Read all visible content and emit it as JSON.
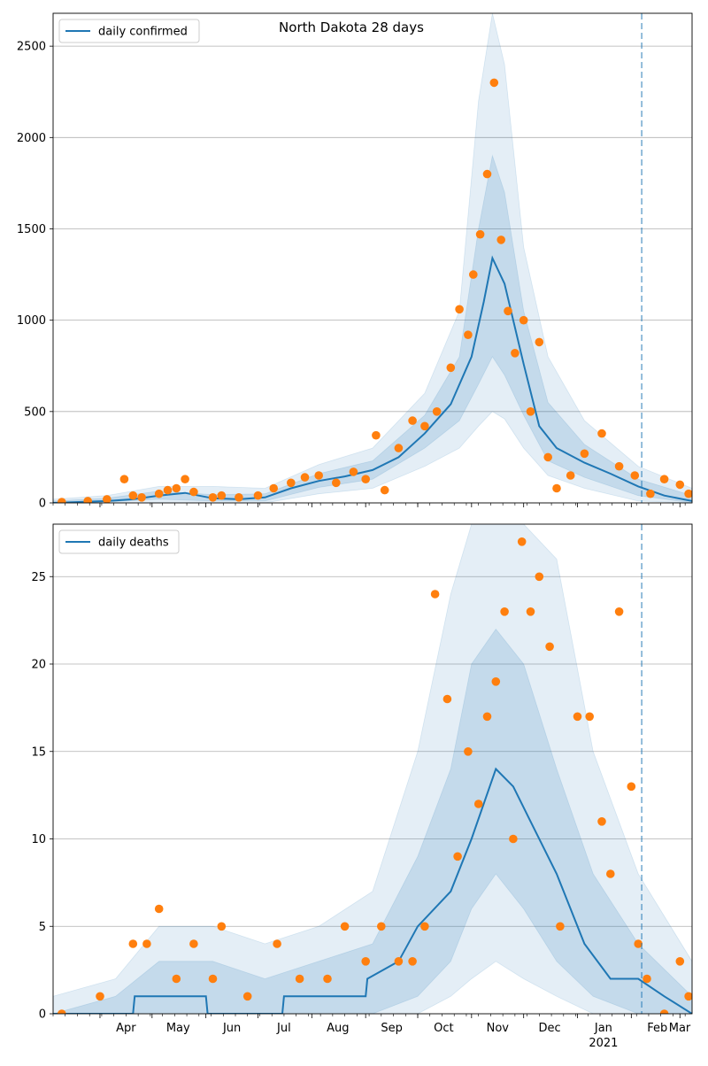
{
  "figure": {
    "title": "North Dakota 28 days"
  },
  "colors": {
    "model_line": "#1f77b4",
    "observed": "#ff7f0e",
    "band": "#1f77b4",
    "grid": "#b0b0b0",
    "cutoff": "#1f77b4"
  },
  "chart_data": [
    {
      "type": "line",
      "title": "North Dakota 28 days",
      "xlabel": "",
      "ylabel": "",
      "x_ticks": [
        "Apr",
        "May",
        "Jun",
        "Jul",
        "Aug",
        "Sep",
        "Oct",
        "Nov",
        "Dec",
        "Jan\n2021",
        "Feb",
        "Mar"
      ],
      "x_range": [
        "2020-03-05",
        "2021-03-08"
      ],
      "y_ticks": [
        0,
        500,
        1000,
        1500,
        2000,
        2500
      ],
      "ylim": [
        0,
        2680
      ],
      "grid": "horizontal",
      "legend": {
        "position": "top-left",
        "entries": [
          "daily confirmed"
        ]
      },
      "vertical_line": "2021-02-07",
      "series": [
        {
          "name": "daily confirmed",
          "kind": "model",
          "x": [
            "2020-03-05",
            "2020-03-20",
            "2020-04-05",
            "2020-04-20",
            "2020-05-05",
            "2020-05-20",
            "2020-06-05",
            "2020-06-20",
            "2020-07-05",
            "2020-07-20",
            "2020-08-05",
            "2020-08-20",
            "2020-09-05",
            "2020-09-20",
            "2020-10-05",
            "2020-10-20",
            "2020-11-01",
            "2020-11-08",
            "2020-11-13",
            "2020-11-20",
            "2020-12-01",
            "2020-12-10",
            "2020-12-20",
            "2021-01-05",
            "2021-01-20",
            "2021-02-05",
            "2021-02-20",
            "2021-03-08"
          ],
          "values": [
            0,
            5,
            10,
            20,
            40,
            55,
            25,
            20,
            30,
            80,
            120,
            145,
            180,
            250,
            380,
            540,
            800,
            1100,
            1340,
            1200,
            760,
            420,
            300,
            220,
            160,
            90,
            40,
            10
          ]
        },
        {
          "name": "",
          "kind": "observed",
          "x": [
            "2020-03-10",
            "2020-03-25",
            "2020-04-05",
            "2020-04-15",
            "2020-04-20",
            "2020-04-25",
            "2020-05-05",
            "2020-05-10",
            "2020-05-15",
            "2020-05-20",
            "2020-05-25",
            "2020-06-05",
            "2020-06-10",
            "2020-06-20",
            "2020-07-01",
            "2020-07-10",
            "2020-07-20",
            "2020-07-28",
            "2020-08-05",
            "2020-08-15",
            "2020-08-25",
            "2020-09-01",
            "2020-09-07",
            "2020-09-12",
            "2020-09-20",
            "2020-09-28",
            "2020-10-05",
            "2020-10-12",
            "2020-10-20",
            "2020-10-25",
            "2020-10-30",
            "2020-11-02",
            "2020-11-06",
            "2020-11-10",
            "2020-11-14",
            "2020-11-18",
            "2020-11-22",
            "2020-11-26",
            "2020-12-01",
            "2020-12-05",
            "2020-12-10",
            "2020-12-15",
            "2020-12-20",
            "2020-12-28",
            "2021-01-05",
            "2021-01-15",
            "2021-01-25",
            "2021-02-03",
            "2021-02-12",
            "2021-02-20",
            "2021-03-01",
            "2021-03-06"
          ],
          "values": [
            5,
            10,
            20,
            130,
            40,
            30,
            50,
            70,
            80,
            130,
            60,
            30,
            40,
            30,
            40,
            80,
            110,
            140,
            150,
            110,
            170,
            130,
            370,
            70,
            300,
            450,
            420,
            500,
            740,
            1060,
            920,
            1250,
            1470,
            1800,
            2300,
            1440,
            1050,
            820,
            1000,
            500,
            880,
            250,
            80,
            150,
            270,
            380,
            200,
            150,
            50,
            130,
            100,
            50
          ]
        }
      ],
      "bands": [
        {
          "level": "outer",
          "x": [
            "2020-03-05",
            "2020-04-05",
            "2020-05-05",
            "2020-06-05",
            "2020-07-05",
            "2020-08-05",
            "2020-09-05",
            "2020-10-05",
            "2020-10-25",
            "2020-11-05",
            "2020-11-13",
            "2020-11-20",
            "2020-12-01",
            "2020-12-15",
            "2021-01-05",
            "2021-02-05",
            "2021-03-08"
          ],
          "upper": [
            20,
            40,
            90,
            90,
            80,
            210,
            300,
            600,
            1050,
            2200,
            2680,
            2400,
            1400,
            800,
            450,
            200,
            80
          ],
          "lower": [
            0,
            0,
            0,
            0,
            0,
            50,
            80,
            200,
            300,
            420,
            500,
            460,
            300,
            150,
            80,
            10,
            0
          ]
        },
        {
          "level": "inner",
          "x": [
            "2020-03-05",
            "2020-04-05",
            "2020-05-05",
            "2020-06-05",
            "2020-07-05",
            "2020-08-05",
            "2020-09-05",
            "2020-10-05",
            "2020-10-25",
            "2020-11-05",
            "2020-11-13",
            "2020-11-20",
            "2020-12-01",
            "2020-12-15",
            "2021-01-05",
            "2021-02-05",
            "2021-03-08"
          ],
          "upper": [
            10,
            25,
            65,
            45,
            50,
            160,
            230,
            480,
            800,
            1500,
            1900,
            1700,
            1050,
            550,
            320,
            130,
            40
          ],
          "lower": [
            0,
            5,
            20,
            10,
            10,
            85,
            130,
            300,
            450,
            650,
            800,
            700,
            480,
            230,
            140,
            40,
            0
          ]
        }
      ]
    },
    {
      "type": "line",
      "title": "",
      "xlabel": "",
      "ylabel": "",
      "x_ticks": [
        "Apr",
        "May",
        "Jun",
        "Jul",
        "Aug",
        "Sep",
        "Oct",
        "Nov",
        "Dec",
        "Jan\n2021",
        "Feb",
        "Mar"
      ],
      "x_range": [
        "2020-03-05",
        "2021-03-08"
      ],
      "y_ticks": [
        0,
        5,
        10,
        15,
        20,
        25
      ],
      "ylim": [
        0,
        28
      ],
      "grid": "horizontal",
      "legend": {
        "position": "top-left",
        "entries": [
          "daily deaths"
        ]
      },
      "vertical_line": "2021-02-07",
      "series": [
        {
          "name": "daily deaths",
          "kind": "model",
          "x": [
            "2020-03-05",
            "2020-04-20",
            "2020-04-21",
            "2020-06-01",
            "2020-06-02",
            "2020-07-15",
            "2020-07-16",
            "2020-09-01",
            "2020-09-02",
            "2020-09-20",
            "2020-10-01",
            "2020-10-20",
            "2020-11-01",
            "2020-11-15",
            "2020-11-25",
            "2020-12-05",
            "2020-12-20",
            "2021-01-05",
            "2021-01-20",
            "2021-02-05",
            "2021-02-20",
            "2021-03-08"
          ],
          "values": [
            0,
            0,
            1,
            1,
            0,
            0,
            1,
            1,
            2,
            3,
            5,
            7,
            10,
            14,
            13,
            11,
            8,
            4,
            2,
            2,
            1,
            0
          ]
        },
        {
          "name": "",
          "kind": "observed",
          "x": [
            "2020-03-10",
            "2020-04-01",
            "2020-04-20",
            "2020-04-28",
            "2020-05-05",
            "2020-05-15",
            "2020-05-25",
            "2020-06-05",
            "2020-06-10",
            "2020-06-25",
            "2020-07-12",
            "2020-07-25",
            "2020-08-10",
            "2020-08-20",
            "2020-09-01",
            "2020-09-10",
            "2020-09-20",
            "2020-09-28",
            "2020-10-05",
            "2020-10-11",
            "2020-10-18",
            "2020-10-24",
            "2020-10-30",
            "2020-11-05",
            "2020-11-10",
            "2020-11-15",
            "2020-11-20",
            "2020-11-25",
            "2020-11-30",
            "2020-12-05",
            "2020-12-10",
            "2020-12-16",
            "2020-12-22",
            "2021-01-01",
            "2021-01-08",
            "2021-01-15",
            "2021-01-20",
            "2021-01-25",
            "2021-02-01",
            "2021-02-05",
            "2021-02-10",
            "2021-02-20",
            "2021-03-01",
            "2021-03-06"
          ],
          "values": [
            0,
            1,
            4,
            4,
            6,
            2,
            4,
            2,
            5,
            1,
            4,
            2,
            2,
            5,
            3,
            5,
            3,
            3,
            5,
            24,
            18,
            9,
            15,
            12,
            17,
            19,
            23,
            10,
            27,
            23,
            25,
            21,
            5,
            17,
            17,
            11,
            8,
            23,
            13,
            4,
            2,
            0,
            3,
            1
          ]
        }
      ],
      "bands": [
        {
          "level": "outer",
          "x": [
            "2020-03-05",
            "2020-04-10",
            "2020-05-05",
            "2020-06-05",
            "2020-07-05",
            "2020-08-05",
            "2020-09-05",
            "2020-10-01",
            "2020-10-20",
            "2020-11-01",
            "2020-11-15",
            "2020-12-01",
            "2020-12-20",
            "2021-01-10",
            "2021-02-05",
            "2021-03-08"
          ],
          "upper": [
            1,
            2,
            5,
            5,
            4,
            5,
            7,
            15,
            24,
            28,
            28,
            28,
            26,
            15,
            8,
            3
          ],
          "lower": [
            0,
            0,
            0,
            0,
            0,
            0,
            0,
            0,
            1,
            2,
            3,
            2,
            1,
            0,
            0,
            0
          ]
        },
        {
          "level": "inner",
          "x": [
            "2020-03-05",
            "2020-04-10",
            "2020-05-05",
            "2020-06-05",
            "2020-07-05",
            "2020-08-05",
            "2020-09-05",
            "2020-10-01",
            "2020-10-20",
            "2020-11-01",
            "2020-11-15",
            "2020-12-01",
            "2020-12-20",
            "2021-01-10",
            "2021-02-05",
            "2021-03-08"
          ],
          "upper": [
            0,
            1,
            3,
            3,
            2,
            3,
            4,
            9,
            14,
            20,
            22,
            20,
            14,
            8,
            4,
            1
          ],
          "lower": [
            0,
            0,
            0,
            0,
            0,
            0,
            0,
            1,
            3,
            6,
            8,
            6,
            3,
            1,
            0,
            0
          ]
        }
      ]
    }
  ]
}
